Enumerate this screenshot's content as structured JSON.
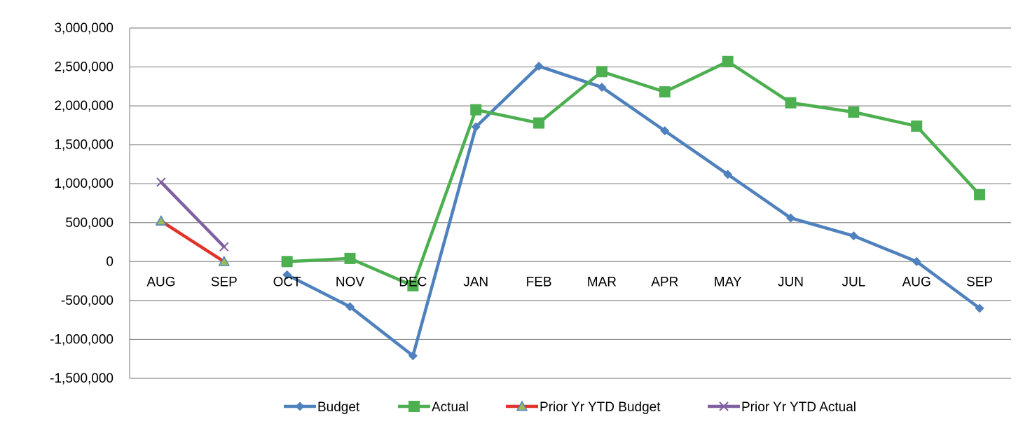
{
  "chart_data": {
    "type": "line",
    "categories": [
      "AUG",
      "SEP",
      "OCT",
      "NOV",
      "DEC",
      "JAN",
      "FEB",
      "MAR",
      "APR",
      "MAY",
      "JUN",
      "JUL",
      "AUG",
      "SEP"
    ],
    "ylim": [
      -1500000,
      3000000
    ],
    "ytick_step": 500000,
    "ytick_labels": [
      "3,000,000",
      "2,500,000",
      "2,000,000",
      "1,500,000",
      "1,000,000",
      "500,000",
      "0",
      "-500,000",
      "-1,000,000",
      "-1,500,000"
    ],
    "grid": true,
    "legend_position": "bottom",
    "series": [
      {
        "name": "Budget",
        "color": "#4F81BD",
        "marker": "diamond",
        "values": [
          null,
          null,
          -170000,
          -580000,
          -1210000,
          1730000,
          2510000,
          2240000,
          1680000,
          1120000,
          560000,
          330000,
          0,
          -600000
        ]
      },
      {
        "name": "Actual",
        "color": "#4CAF50",
        "marker": "square",
        "values": [
          null,
          null,
          0,
          40000,
          -310000,
          1950000,
          1780000,
          2440000,
          2180000,
          2570000,
          2040000,
          1920000,
          1740000,
          860000
        ]
      },
      {
        "name": "Prior Yr YTD Budget",
        "color": "#E0332A",
        "marker": "triangle",
        "values": [
          520000,
          0,
          null,
          null,
          null,
          null,
          null,
          null,
          null,
          null,
          null,
          null,
          null,
          null
        ]
      },
      {
        "name": "Prior Yr YTD Actual",
        "color": "#7F60A0",
        "marker": "x",
        "values": [
          1020000,
          190000,
          null,
          null,
          null,
          null,
          null,
          null,
          null,
          null,
          null,
          null,
          null,
          null
        ]
      }
    ]
  }
}
